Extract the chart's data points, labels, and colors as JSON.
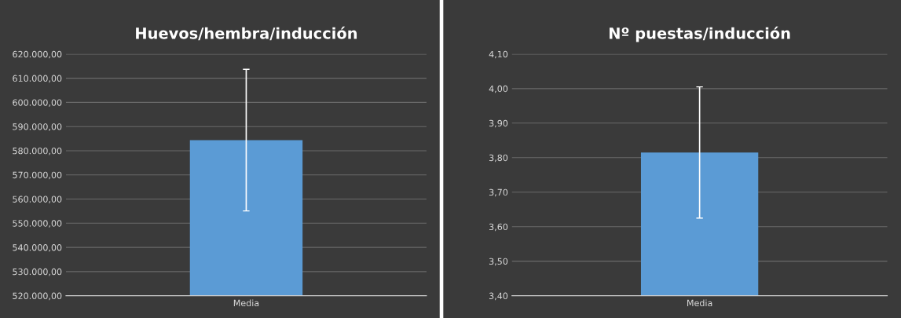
{
  "chart_data": [
    {
      "type": "bar",
      "title": "Huevos/hembra/inducción",
      "categories": [
        "Media"
      ],
      "values": [
        584400
      ],
      "errors": [
        29300
      ],
      "color": "#5b9bd5",
      "ylim": [
        520000,
        620000
      ],
      "yticks": [
        {
          "value": 520000,
          "label": "520.000,00"
        },
        {
          "value": 530000,
          "label": "530.000,00"
        },
        {
          "value": 540000,
          "label": "540.000,00"
        },
        {
          "value": 550000,
          "label": "550.000,00"
        },
        {
          "value": 560000,
          "label": "560.000,00"
        },
        {
          "value": 570000,
          "label": "570.000,00"
        },
        {
          "value": 580000,
          "label": "580.000,00"
        },
        {
          "value": 590000,
          "label": "590.000,00"
        },
        {
          "value": 600000,
          "label": "600.000,00"
        },
        {
          "value": 610000,
          "label": "610.000,00"
        },
        {
          "value": 620000,
          "label": "620.000,00"
        }
      ],
      "grid": "y"
    },
    {
      "type": "bar",
      "title": "Nº puestas/inducción",
      "categories": [
        "Media"
      ],
      "values": [
        3.815
      ],
      "errors": [
        0.19
      ],
      "color": "#5b9bd5",
      "ylim": [
        3.4,
        4.1
      ],
      "yticks": [
        {
          "value": 3.4,
          "label": "3,40"
        },
        {
          "value": 3.5,
          "label": "3,50"
        },
        {
          "value": 3.6,
          "label": "3,60"
        },
        {
          "value": 3.7,
          "label": "3,70"
        },
        {
          "value": 3.8,
          "label": "3,80"
        },
        {
          "value": 3.9,
          "label": "3,90"
        },
        {
          "value": 4.0,
          "label": "4,00"
        },
        {
          "value": 4.1,
          "label": "4,10"
        }
      ],
      "grid": "y"
    }
  ]
}
